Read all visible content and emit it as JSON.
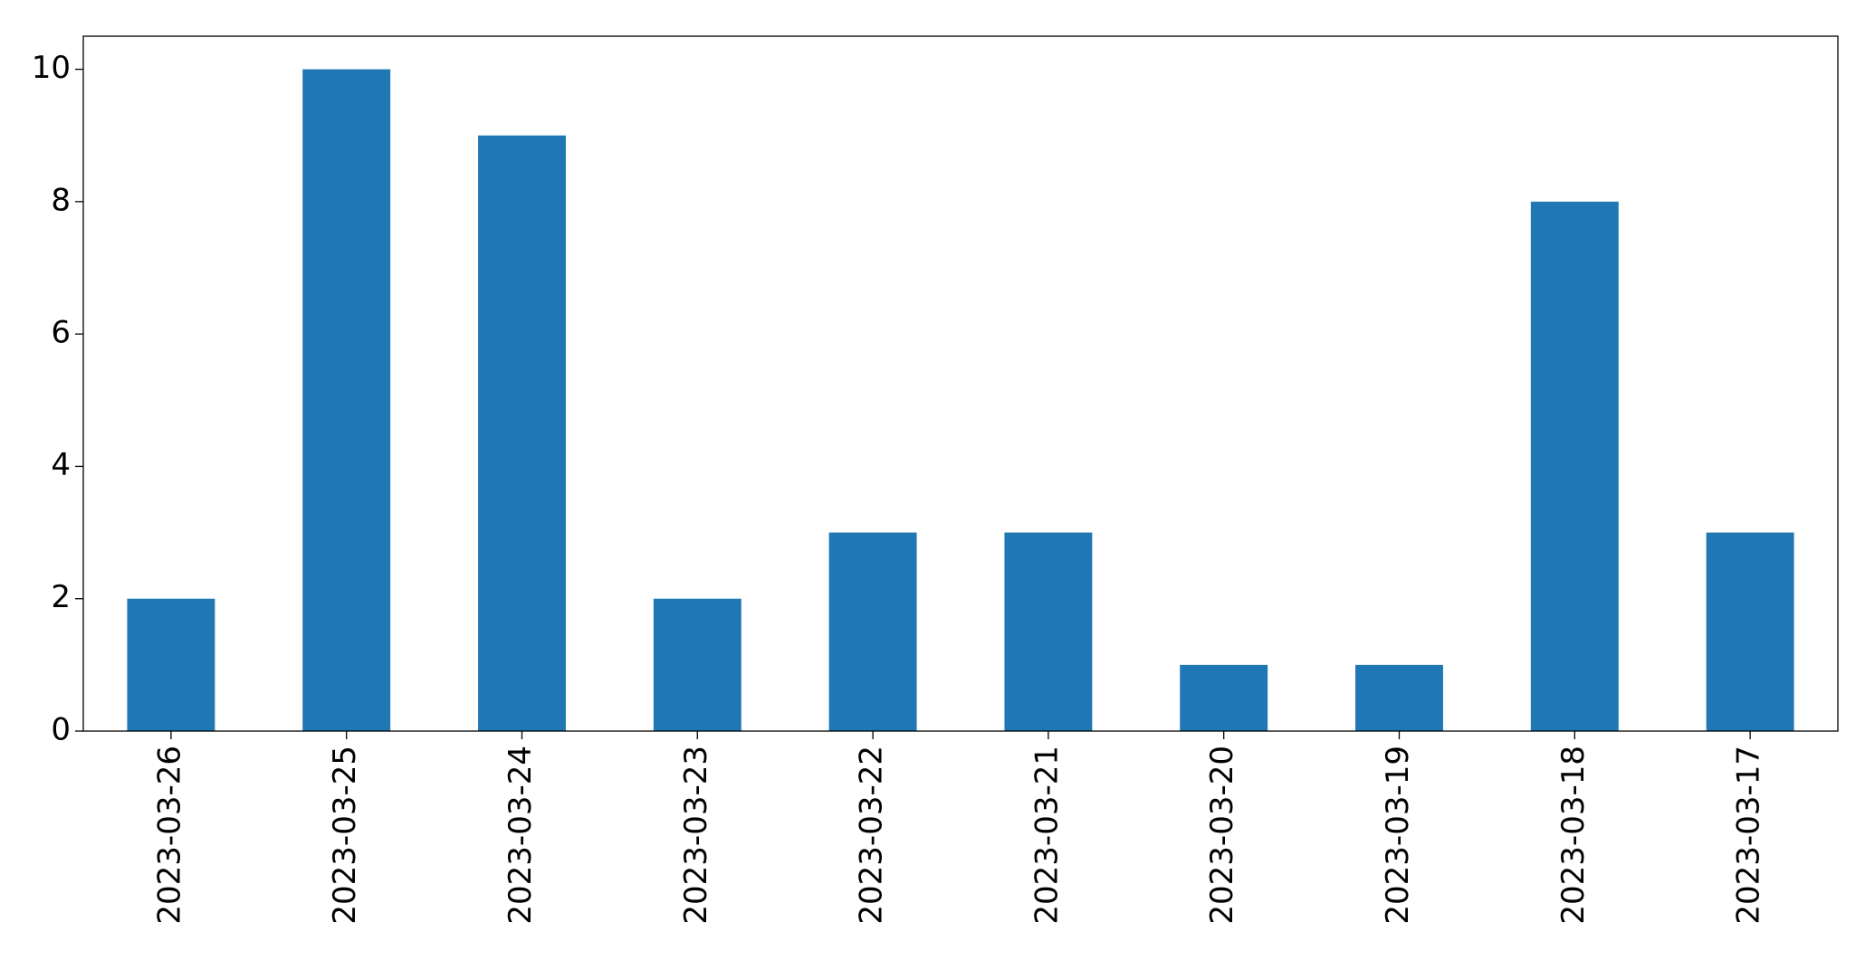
{
  "chart_data": {
    "type": "bar",
    "categories": [
      "2023-03-26",
      "2023-03-25",
      "2023-03-24",
      "2023-03-23",
      "2023-03-22",
      "2023-03-21",
      "2023-03-20",
      "2023-03-19",
      "2023-03-18",
      "2023-03-17"
    ],
    "values": [
      2,
      10,
      9,
      2,
      3,
      3,
      1,
      1,
      8,
      3
    ],
    "color": "#1f77b4",
    "ylim": [
      0,
      10.5
    ],
    "yticks": [
      0,
      2,
      4,
      6,
      8,
      10
    ],
    "grid": false
  }
}
